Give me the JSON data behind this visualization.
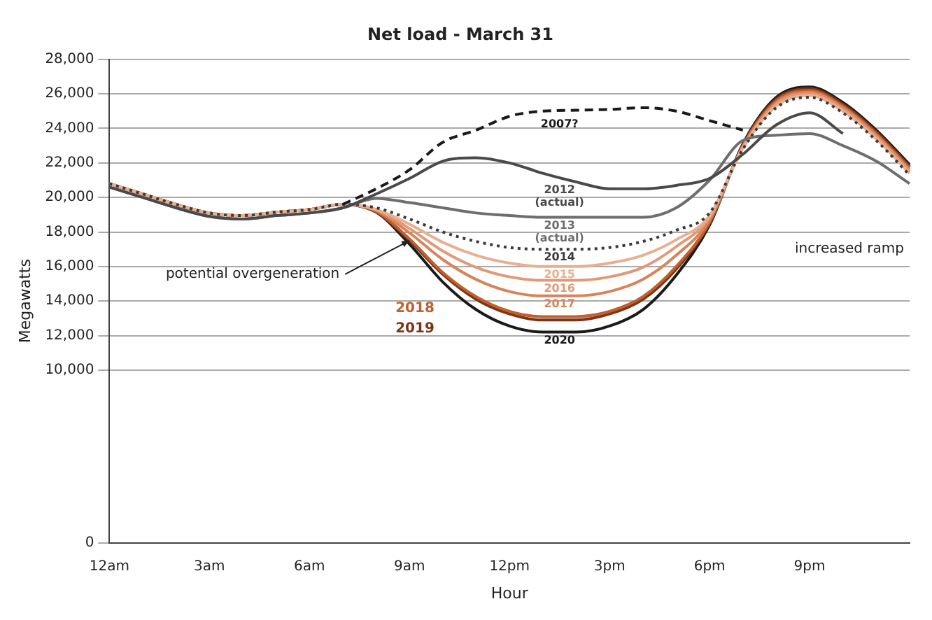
{
  "chart_data": {
    "type": "line",
    "title": "Net load - March 31",
    "xlabel": "Hour",
    "ylabel": "Megawatts",
    "categories": [
      "12am",
      null,
      null,
      "3am",
      null,
      null,
      "6am",
      null,
      null,
      "9am",
      null,
      null,
      "12pm",
      null,
      null,
      "3pm",
      null,
      null,
      "6pm",
      null,
      null,
      "9pm",
      null,
      null,
      null
    ],
    "ylim": [
      0,
      28000
    ],
    "yticks": [
      0,
      {
        "value": 10000,
        "label": "10,000"
      },
      {
        "value": 12000,
        "label": "12,000"
      },
      {
        "value": 14000,
        "label": "14,000"
      },
      {
        "value": 16000,
        "label": "16,000"
      },
      {
        "value": 18000,
        "label": "18,000"
      },
      {
        "value": 20000,
        "label": "20,000"
      },
      {
        "value": 22000,
        "label": "22,000"
      },
      {
        "value": 24000,
        "label": "24,000"
      },
      {
        "value": 26000,
        "label": "26,000"
      },
      {
        "value": 28000,
        "label": "28,000"
      }
    ],
    "grid": "y",
    "legend": false,
    "marker": "none",
    "series": [
      {
        "name": "2007?",
        "color": "#1a1a1a",
        "line_style": "dashed",
        "values": [
          null,
          null,
          null,
          null,
          null,
          null,
          null,
          19600,
          20500,
          21600,
          23200,
          23900,
          24700,
          25000,
          25050,
          25100,
          25200,
          25000,
          24450,
          23900,
          null,
          null,
          null,
          null,
          null
        ]
      },
      {
        "name": "2012 (actual)",
        "color": "#4a4a4a",
        "values": [
          20600,
          20000,
          19400,
          18900,
          18750,
          18950,
          19100,
          19400,
          20200,
          21100,
          22100,
          22300,
          22000,
          21400,
          20900,
          20500,
          20500,
          20700,
          21100,
          22500,
          24200,
          24900,
          23700,
          null,
          null
        ]
      },
      {
        "name": "2013 (actual)",
        "color": "#6e6e6e",
        "values": [
          20600,
          20000,
          19400,
          18900,
          18750,
          18950,
          19100,
          19400,
          19950,
          19700,
          19400,
          19100,
          18950,
          18850,
          18850,
          18850,
          18850,
          19400,
          21000,
          23300,
          23600,
          23700,
          23000,
          22100,
          20800
        ]
      },
      {
        "name": "2014",
        "color": "#3a3a3a",
        "line_style": "dotted",
        "values": [
          20800,
          20200,
          19600,
          19100,
          18950,
          19150,
          19300,
          19600,
          19400,
          18750,
          18000,
          17450,
          17100,
          17000,
          17000,
          17100,
          17450,
          18100,
          19100,
          22800,
          25200,
          25800,
          24900,
          23300,
          21300
        ]
      },
      {
        "name": "2015",
        "color": "#e8b090",
        "values": [
          20800,
          20200,
          19600,
          19100,
          18950,
          19150,
          19300,
          19600,
          19300,
          18450,
          17400,
          16650,
          16200,
          16000,
          16000,
          16200,
          16650,
          17550,
          18950,
          22850,
          25300,
          25900,
          25000,
          23400,
          21400
        ]
      },
      {
        "name": "2016",
        "color": "#e09a78",
        "values": [
          20800,
          20200,
          19600,
          19100,
          18950,
          19150,
          19300,
          19600,
          19300,
          18200,
          16900,
          15950,
          15400,
          15200,
          15200,
          15400,
          15950,
          17150,
          18850,
          22900,
          25400,
          26000,
          25100,
          23500,
          21500
        ]
      },
      {
        "name": "2017",
        "color": "#d8845a",
        "values": [
          20800,
          20200,
          19600,
          19100,
          18950,
          19150,
          19300,
          19600,
          19250,
          17950,
          16400,
          15250,
          14550,
          14300,
          14300,
          14550,
          15250,
          16650,
          18700,
          22950,
          25500,
          26100,
          25200,
          23600,
          21600
        ]
      },
      {
        "name": "2018",
        "color": "#c0602e",
        "values": [
          20800,
          20200,
          19600,
          19100,
          18950,
          19150,
          19300,
          19600,
          19200,
          17600,
          15650,
          14250,
          13400,
          13100,
          13100,
          13400,
          14250,
          16000,
          18550,
          23000,
          25600,
          26200,
          25300,
          23700,
          21700
        ]
      },
      {
        "name": "2019",
        "color": "#7a3518",
        "values": [
          20800,
          20200,
          19600,
          19100,
          18950,
          19150,
          19300,
          19600,
          19150,
          17500,
          15550,
          14100,
          13250,
          12900,
          12900,
          13250,
          14100,
          15850,
          18500,
          23050,
          25700,
          26300,
          25400,
          23800,
          21800
        ]
      },
      {
        "name": "2020",
        "color": "#1a1a1a",
        "values": [
          20800,
          20200,
          19600,
          19100,
          18950,
          19150,
          19300,
          19600,
          19150,
          17300,
          15100,
          13500,
          12550,
          12200,
          12200,
          12550,
          13500,
          15500,
          18400,
          23100,
          25800,
          26400,
          25500,
          23900,
          21900
        ]
      }
    ],
    "annotations": [
      {
        "text": "potential overgeneration",
        "x": "9am",
        "y": 17500
      },
      "increased ramp"
    ]
  }
}
